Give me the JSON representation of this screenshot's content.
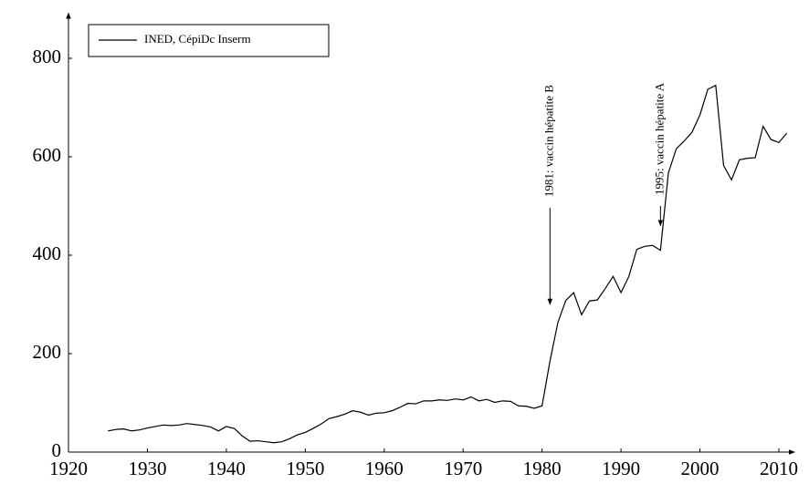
{
  "chart_data": {
    "type": "line",
    "x": [
      1925,
      1926,
      1927,
      1928,
      1929,
      1930,
      1931,
      1932,
      1933,
      1934,
      1935,
      1936,
      1937,
      1938,
      1939,
      1940,
      1941,
      1942,
      1943,
      1944,
      1945,
      1946,
      1947,
      1948,
      1949,
      1950,
      1951,
      1952,
      1953,
      1954,
      1955,
      1956,
      1957,
      1958,
      1959,
      1960,
      1961,
      1962,
      1963,
      1964,
      1965,
      1966,
      1967,
      1968,
      1969,
      1970,
      1971,
      1972,
      1973,
      1974,
      1975,
      1976,
      1977,
      1978,
      1979,
      1980,
      1981,
      1982,
      1983,
      1984,
      1985,
      1986,
      1987,
      1988,
      1989,
      1990,
      1991,
      1992,
      1993,
      1994,
      1995,
      1996,
      1997,
      1998,
      1999,
      2000,
      2001,
      2002,
      2003,
      2004,
      2005,
      2006,
      2007,
      2008,
      2009,
      2010,
      2011
    ],
    "series": [
      {
        "name": "INED, CépiDc Inserm",
        "color": "#000000",
        "values": [
          43,
          46,
          47,
          43,
          45,
          49,
          52,
          55,
          54,
          55,
          58,
          56,
          54,
          51,
          43,
          52,
          48,
          33,
          22,
          23,
          21,
          19,
          21,
          27,
          35,
          40,
          48,
          57,
          68,
          72,
          77,
          84,
          81,
          75,
          79,
          80,
          84,
          91,
          99,
          98,
          104,
          104,
          106,
          105,
          108,
          106,
          112,
          104,
          107,
          101,
          104,
          103,
          94,
          93,
          89,
          94,
          185,
          263,
          308,
          324,
          279,
          307,
          309,
          332,
          357,
          324,
          357,
          412,
          418,
          420,
          410,
          567,
          616,
          632,
          650,
          685,
          737,
          745,
          582,
          553,
          594,
          597,
          598,
          662,
          635,
          629,
          648
        ]
      }
    ],
    "annotations": [
      {
        "text": "1981: vaccin hépatite B",
        "x": 1981,
        "y_from": 496,
        "y_to": 300
      },
      {
        "text": "1995: vaccin hépatite A",
        "x": 1995,
        "y_from": 500,
        "y_to": 460
      }
    ],
    "xlim": [
      1920,
      2012
    ],
    "ylim": [
      0,
      892
    ],
    "xticks": [
      1920,
      1930,
      1940,
      1950,
      1960,
      1970,
      1980,
      1990,
      2000,
      2010
    ],
    "yticks": [
      0,
      200,
      400,
      600,
      800
    ],
    "grid": false,
    "legend": "upper left"
  }
}
